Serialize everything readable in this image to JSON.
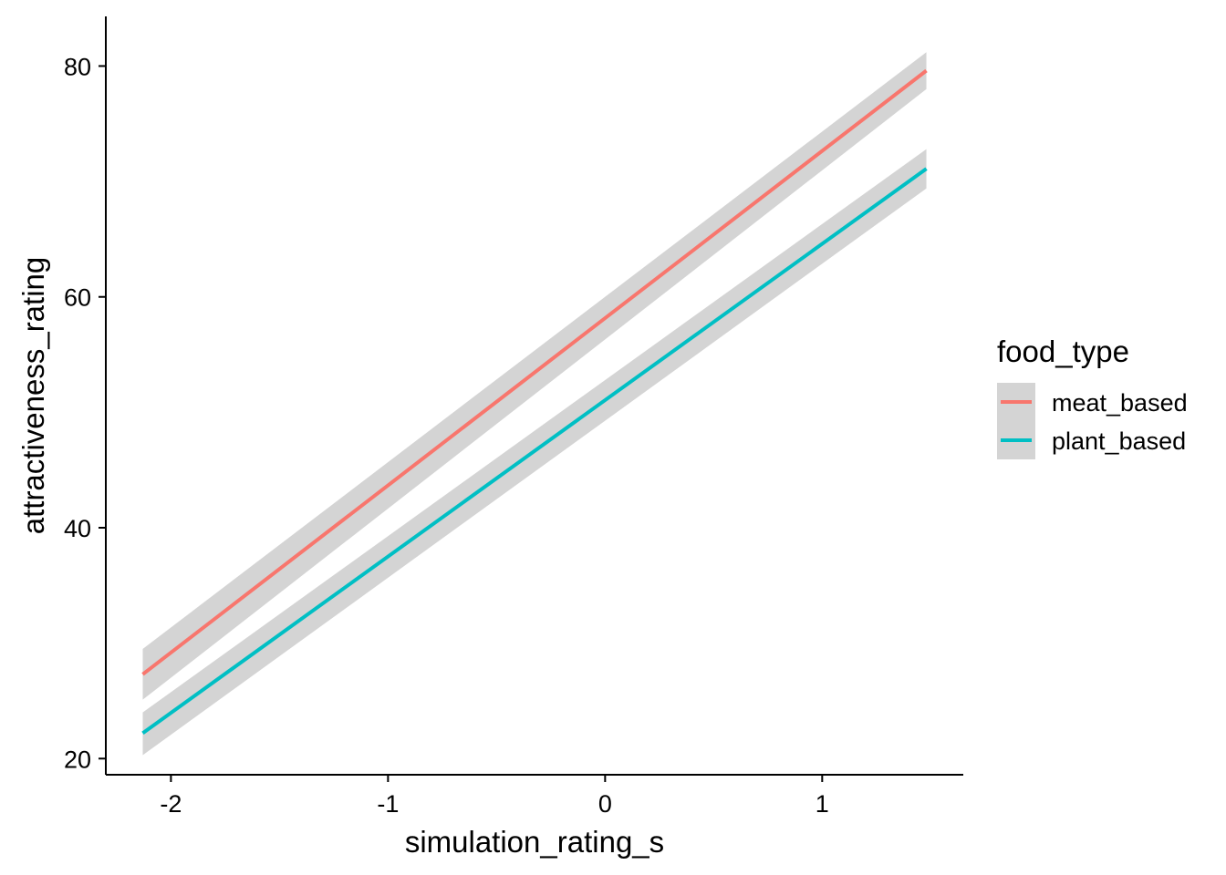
{
  "chart_data": {
    "type": "line",
    "xlabel": "simulation_rating_s",
    "ylabel": "attractiveness_rating",
    "xlim": [
      -2.3,
      1.65
    ],
    "ylim": [
      18.6,
      84.3
    ],
    "x_ticks": [
      -2,
      -1,
      0,
      1
    ],
    "x_tick_labels": [
      "-2",
      "-1",
      "0",
      "1"
    ],
    "y_ticks": [
      20,
      40,
      60,
      80
    ],
    "y_tick_labels": [
      "20",
      "40",
      "60",
      "80"
    ],
    "grid": false,
    "legend": {
      "title": "food_type",
      "position": "right",
      "entries": [
        "meat_based",
        "plant_based"
      ]
    },
    "series": [
      {
        "name": "meat_based",
        "color": "#F8766D",
        "x": [
          -2.13,
          1.48
        ],
        "y": [
          27.3,
          79.6
        ],
        "ci_lower": [
          25.1,
          78.0
        ],
        "ci_upper": [
          29.5,
          81.2
        ]
      },
      {
        "name": "plant_based",
        "color": "#00BFC4",
        "x": [
          -2.13,
          1.48
        ],
        "y": [
          22.2,
          71.1
        ],
        "ci_lower": [
          20.3,
          69.4
        ],
        "ci_upper": [
          24.0,
          72.8
        ]
      }
    ],
    "ribbon_color": "#D4D4D4"
  }
}
